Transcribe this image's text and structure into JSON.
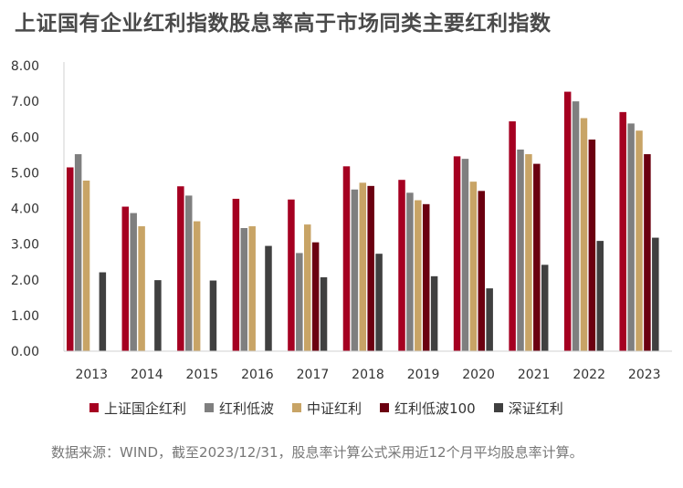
{
  "chart_data": {
    "type": "bar",
    "title": "上证国有企业红利指数股息率高于市场同类主要红利指数",
    "categories": [
      "2013",
      "2014",
      "2015",
      "2016",
      "2017",
      "2018",
      "2019",
      "2020",
      "2021",
      "2022",
      "2023"
    ],
    "ylim": [
      0,
      8
    ],
    "yticks": [
      "0.00",
      "1.00",
      "2.00",
      "3.00",
      "4.00",
      "5.00",
      "6.00",
      "7.00",
      "8.00"
    ],
    "grid": false,
    "legend_position": "bottom",
    "series": [
      {
        "name": "上证国企红利",
        "color": "#A50021",
        "values": [
          5.15,
          4.05,
          4.62,
          4.27,
          4.25,
          5.18,
          4.8,
          5.46,
          6.44,
          7.27,
          6.7
        ]
      },
      {
        "name": "红利低波",
        "color": "#7F7F7F",
        "values": [
          5.52,
          3.87,
          4.36,
          3.45,
          2.75,
          4.53,
          4.44,
          5.39,
          5.65,
          7.0,
          6.38
        ]
      },
      {
        "name": "中证红利",
        "color": "#C8A466",
        "values": [
          4.78,
          3.5,
          3.64,
          3.5,
          3.55,
          4.72,
          4.23,
          4.75,
          5.52,
          6.53,
          6.18
        ]
      },
      {
        "name": "红利低波100",
        "color": "#6B0010",
        "values": [
          null,
          null,
          null,
          null,
          3.05,
          4.63,
          4.12,
          4.49,
          5.25,
          5.93,
          5.52
        ]
      },
      {
        "name": "深证红利",
        "color": "#404040",
        "values": [
          2.21,
          1.99,
          1.98,
          2.95,
          2.07,
          2.73,
          2.1,
          1.76,
          2.42,
          3.09,
          3.18
        ]
      }
    ]
  },
  "source_note": "数据来源：WIND，截至2023/12/31，股息率计算公式采用近12个月平均股息率计算。"
}
